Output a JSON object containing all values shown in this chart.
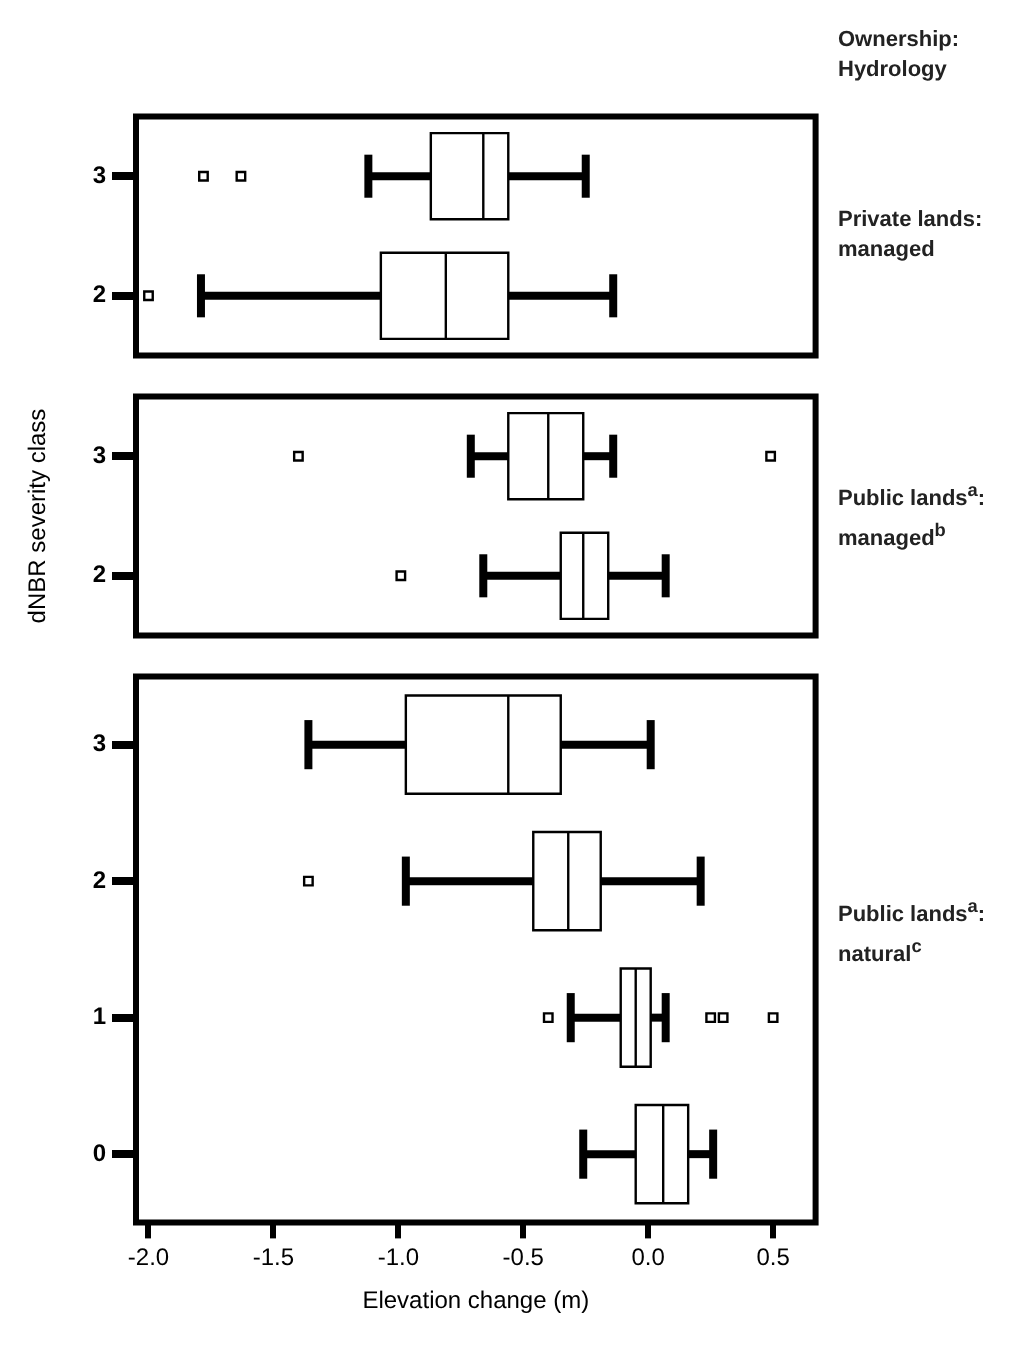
{
  "chart_data": [
    {
      "type": "box",
      "orientation": "horizontal",
      "annotations": [
        "Ownership: Hydrology",
        "Private lands: managed"
      ],
      "categories": [
        "3",
        "2"
      ],
      "tick_labels": "y",
      "xlim": [
        -2.05,
        0.67
      ],
      "boxes": [
        {
          "low": -1.12,
          "q1": -0.87,
          "median": -0.66,
          "q3": -0.56,
          "high": -0.25,
          "outliers": [
            -1.78,
            -1.63
          ]
        },
        {
          "low": -1.79,
          "q1": -1.07,
          "median": -0.81,
          "q3": -0.56,
          "high": -0.14,
          "outliers": [
            -2.0
          ]
        }
      ]
    },
    {
      "type": "box",
      "orientation": "horizontal",
      "annotations": [
        "Public lands$^{a}$: managed$^{b}$"
      ],
      "ylabel": "dNBR severity class",
      "categories": [
        "3",
        "2"
      ],
      "tick_labels": "y",
      "xlim": [
        -2.05,
        0.67
      ],
      "boxes": [
        {
          "low": -0.71,
          "q1": -0.56,
          "median": -0.4,
          "q3": -0.26,
          "high": -0.14,
          "outliers": [
            -1.4,
            0.49
          ]
        },
        {
          "low": -0.66,
          "q1": -0.35,
          "median": -0.26,
          "q3": -0.16,
          "high": 0.07,
          "outliers": [
            -0.99
          ]
        }
      ]
    },
    {
      "type": "box",
      "orientation": "horizontal",
      "annotations": [
        "Public lands$^{a}$: natural$^{c}$"
      ],
      "xlabel": "Elevation change (m)",
      "categories": [
        "3",
        "2",
        "1",
        "0"
      ],
      "xlim": [
        -2.05,
        0.67
      ],
      "xticks": [
        {
          "value": -2,
          "label": "-2.0"
        },
        {
          "value": -1.5,
          "label": "-1.5"
        },
        {
          "value": -1,
          "label": "-1.0"
        },
        {
          "value": -0.5,
          "label": "-0.5"
        },
        {
          "value": 0,
          "label": "0.0"
        },
        {
          "value": 0.5,
          "label": "0.5"
        }
      ],
      "boxes": [
        {
          "low": -1.36,
          "q1": -0.97,
          "median": -0.56,
          "q3": -0.35,
          "high": 0.01
        },
        {
          "low": -0.97,
          "q1": -0.46,
          "median": -0.32,
          "q3": -0.19,
          "high": 0.21,
          "outliers": [
            -1.36
          ]
        },
        {
          "low": -0.31,
          "q1": -0.11,
          "median": -0.05,
          "q3": 0.01,
          "high": 0.07,
          "outliers": [
            -0.4,
            0.25,
            0.3,
            0.5
          ]
        },
        {
          "low": -0.26,
          "q1": -0.05,
          "median": 0.06,
          "q3": 0.16,
          "high": 0.26
        }
      ]
    }
  ]
}
